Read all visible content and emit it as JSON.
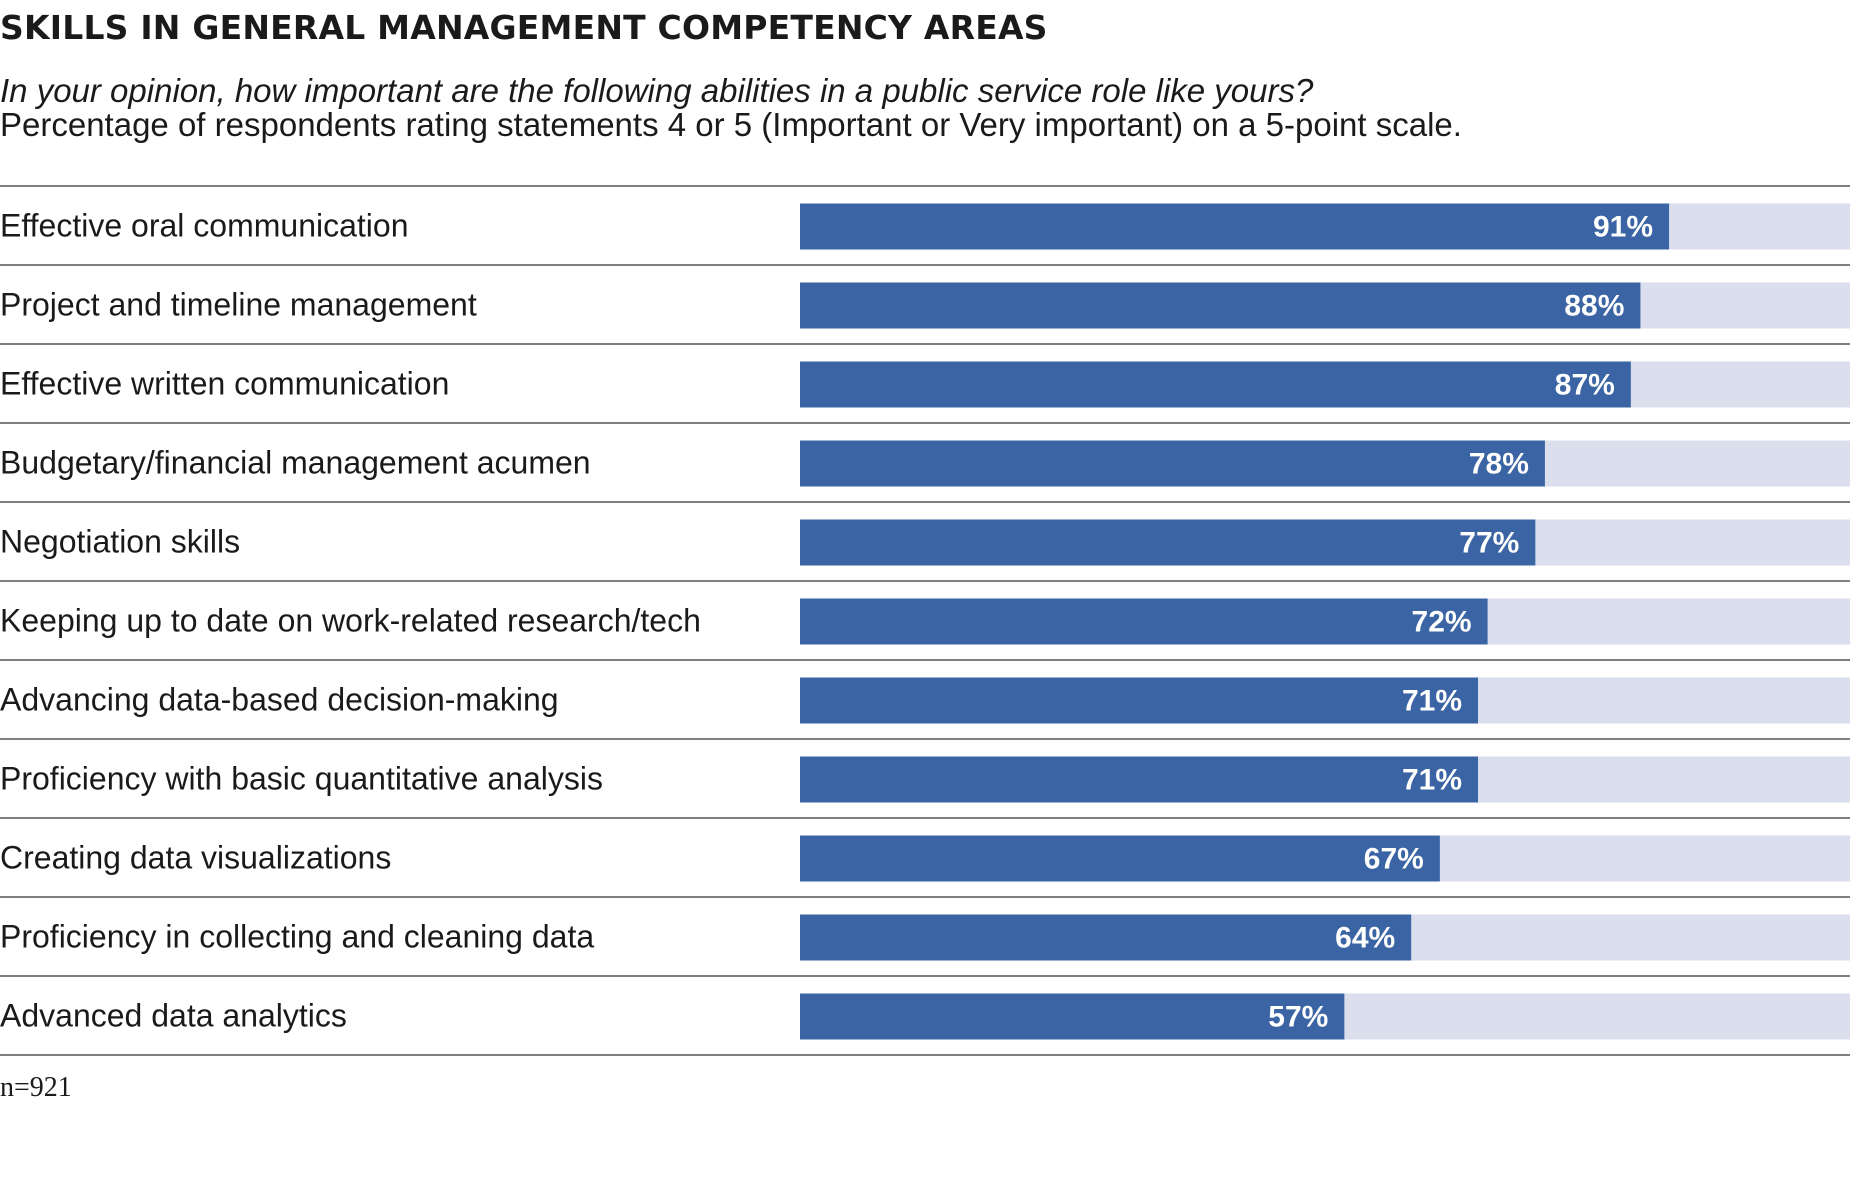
{
  "colors": {
    "bar": "#3a64a3",
    "track": "#dadeed",
    "divider": "#555555"
  },
  "chart_data": {
    "type": "bar",
    "orientation": "horizontal",
    "title": "SKILLS IN GENERAL MANAGEMENT COMPETENCY AREAS",
    "subtitle": "In your opinion, how important are the following abilities in a public service role like yours?",
    "note": "Percentage of respondents rating statements 4 or 5 (Important or Very important) on a 5-point scale.",
    "footnote": "n=921",
    "xlim": [
      0,
      100
    ],
    "grid": false,
    "categories": [
      "Effective oral communication",
      "Project and timeline management",
      "Effective written communication",
      "Budgetary/financial management acumen",
      "Negotiation skills",
      "Keeping up to date on work-related research/tech",
      "Advancing data-based decision-making",
      "Proficiency with basic quantitative analysis",
      "Creating data visualizations",
      "Proficiency in collecting and cleaning data",
      "Advanced data analytics"
    ],
    "values": [
      91,
      88,
      87,
      78,
      77,
      72,
      71,
      71,
      67,
      64,
      57
    ],
    "value_labels": [
      "91%",
      "88%",
      "87%",
      "78%",
      "77%",
      "72%",
      "71%",
      "71%",
      "67%",
      "64%",
      "57%"
    ]
  }
}
